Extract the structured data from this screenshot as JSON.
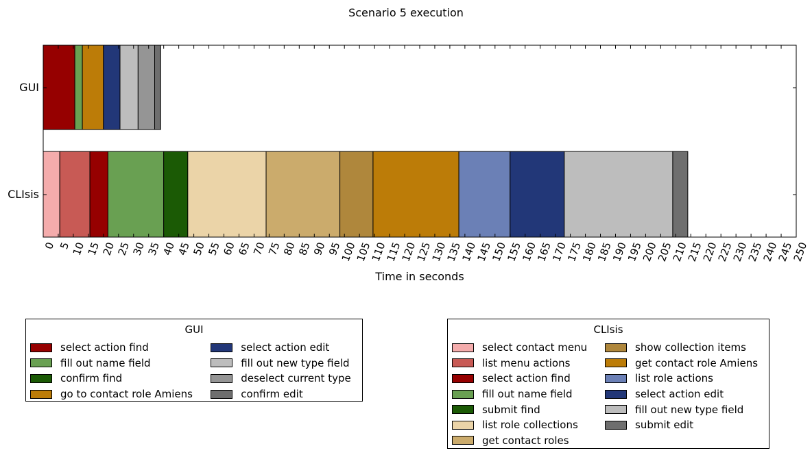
{
  "chart_data": {
    "type": "bar",
    "orientation": "horizontal-stacked",
    "title": "Scenario 5 execution",
    "xlabel": "Time in seconds",
    "ylabel": "",
    "xlim": [
      0,
      250
    ],
    "xticks": [
      0,
      5,
      10,
      15,
      20,
      25,
      30,
      35,
      40,
      45,
      50,
      55,
      60,
      65,
      70,
      75,
      80,
      85,
      90,
      95,
      100,
      105,
      110,
      115,
      120,
      125,
      130,
      135,
      140,
      145,
      150,
      155,
      160,
      165,
      170,
      175,
      180,
      185,
      190,
      195,
      200,
      205,
      210,
      215,
      220,
      225,
      230,
      235,
      240,
      245,
      250
    ],
    "grid": false,
    "rows": [
      {
        "label": "GUI",
        "segments": [
          {
            "name": "select action find",
            "start": 0,
            "end": 10.5,
            "color": "#960000"
          },
          {
            "name": "fill out name field",
            "start": 10.5,
            "end": 13,
            "color": "#69a052"
          },
          {
            "name": "confirm find",
            "start": 13,
            "end": 13,
            "color": "#1b5a05"
          },
          {
            "name": "go to contact role Amiens",
            "start": 13,
            "end": 20,
            "color": "#bc7c08"
          },
          {
            "name": "select action edit",
            "start": 20,
            "end": 25.5,
            "color": "#223778"
          },
          {
            "name": "fill out new type field",
            "start": 25.5,
            "end": 31.5,
            "color": "#bdbdbd"
          },
          {
            "name": "deselect current type",
            "start": 31.5,
            "end": 37,
            "color": "#959595"
          },
          {
            "name": "confirm edit",
            "start": 37,
            "end": 39,
            "color": "#6e6e6e"
          }
        ]
      },
      {
        "label": "CLIsis",
        "segments": [
          {
            "name": "select contact menu",
            "start": 0,
            "end": 5.5,
            "color": "#f4acac"
          },
          {
            "name": "list menu actions",
            "start": 5.5,
            "end": 15.5,
            "color": "#c85a55"
          },
          {
            "name": "select action find",
            "start": 15.5,
            "end": 21.5,
            "color": "#960000"
          },
          {
            "name": "fill out name field",
            "start": 21.5,
            "end": 40,
            "color": "#69a052"
          },
          {
            "name": "submit find",
            "start": 40,
            "end": 48,
            "color": "#1b5a05"
          },
          {
            "name": "list role collections",
            "start": 48,
            "end": 74,
            "color": "#ebd4a8"
          },
          {
            "name": "get contact roles",
            "start": 74,
            "end": 98.5,
            "color": "#cbab6c"
          },
          {
            "name": "show collection items",
            "start": 98.5,
            "end": 109.5,
            "color": "#af873c"
          },
          {
            "name": "get contact role Amiens",
            "start": 109.5,
            "end": 138,
            "color": "#bc7c08"
          },
          {
            "name": "list role actions",
            "start": 138,
            "end": 155,
            "color": "#6b80b6"
          },
          {
            "name": "select action edit",
            "start": 155,
            "end": 173,
            "color": "#223778"
          },
          {
            "name": "fill out new type field",
            "start": 173,
            "end": 209,
            "color": "#bdbdbd"
          },
          {
            "name": "submit edit",
            "start": 209,
            "end": 214,
            "color": "#6e6e6e"
          }
        ]
      }
    ]
  },
  "legends": [
    {
      "title": "GUI",
      "entries": [
        {
          "label": "select action find",
          "color": "#960000"
        },
        {
          "label": "fill out name field",
          "color": "#69a052"
        },
        {
          "label": "confirm find",
          "color": "#1b5a05"
        },
        {
          "label": "go to contact role Amiens",
          "color": "#bc7c08"
        },
        {
          "label": "select action edit",
          "color": "#223778"
        },
        {
          "label": "fill out new type field",
          "color": "#bdbdbd"
        },
        {
          "label": "deselect current type",
          "color": "#959595"
        },
        {
          "label": "confirm edit",
          "color": "#6e6e6e"
        }
      ]
    },
    {
      "title": "CLIsis",
      "entries": [
        {
          "label": "select contact menu",
          "color": "#f4acac"
        },
        {
          "label": "list menu actions",
          "color": "#c85a55"
        },
        {
          "label": "select action find",
          "color": "#960000"
        },
        {
          "label": "fill out name field",
          "color": "#69a052"
        },
        {
          "label": "submit find",
          "color": "#1b5a05"
        },
        {
          "label": "list role collections",
          "color": "#ebd4a8"
        },
        {
          "label": "get contact roles",
          "color": "#cbab6c"
        },
        {
          "label": "show collection items",
          "color": "#af873c"
        },
        {
          "label": "get contact role Amiens",
          "color": "#bc7c08"
        },
        {
          "label": "list role actions",
          "color": "#6b80b6"
        },
        {
          "label": "select action edit",
          "color": "#223778"
        },
        {
          "label": "fill out new type field",
          "color": "#bdbdbd"
        },
        {
          "label": "submit edit",
          "color": "#6e6e6e"
        }
      ]
    }
  ]
}
